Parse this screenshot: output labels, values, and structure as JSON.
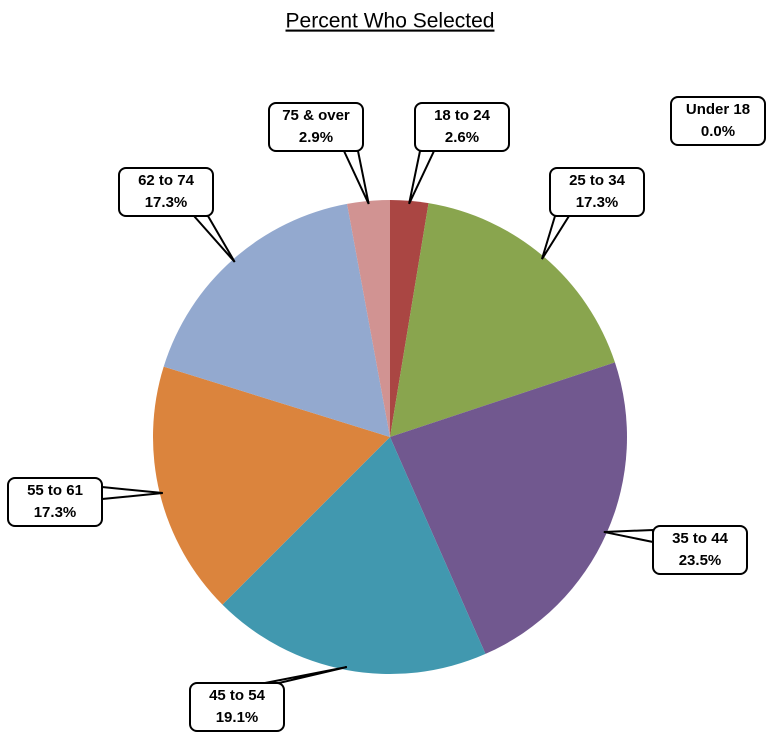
{
  "chart_data": {
    "type": "pie",
    "title": "Percent Who Selected",
    "categories": [
      "Under 18",
      "18 to 24",
      "25 to 34",
      "35 to 44",
      "45 to 54",
      "55 to 61",
      "62 to 74",
      "75 & over"
    ],
    "values": [
      0.0,
      2.6,
      17.3,
      23.5,
      19.1,
      17.3,
      17.3,
      2.9
    ],
    "value_labels": [
      "0.0%",
      "2.6%",
      "17.3%",
      "23.5%",
      "19.1%",
      "17.3%",
      "17.3%",
      "2.9%"
    ],
    "colors": [
      "#4f81bd",
      "#aa4643",
      "#89a54e",
      "#71588f",
      "#4198af",
      "#db843d",
      "#93a9cf",
      "#d19392"
    ]
  }
}
